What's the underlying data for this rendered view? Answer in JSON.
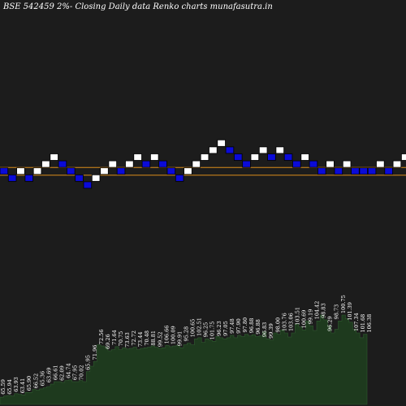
{
  "chart_data": {
    "type": "renko",
    "title": "BSE 542459 2%-  Closing Daily data  Renko  charts munafasutra.in",
    "colors": {
      "background": "#1c1c1c",
      "up_brick": "#ffffff",
      "down_brick": "#0b0bd8",
      "brick_border": "#000000",
      "price_lines": "#d98c1a",
      "volume_fill": "#1e3a1e",
      "volume_line": "#2f5a2f"
    },
    "bricks": [
      {
        "level": 0,
        "dir": "down"
      },
      {
        "level": -1,
        "dir": "down"
      },
      {
        "level": 0,
        "dir": "up"
      },
      {
        "level": -1,
        "dir": "down"
      },
      {
        "level": 0,
        "dir": "up"
      },
      {
        "level": 1,
        "dir": "up"
      },
      {
        "level": 2,
        "dir": "up"
      },
      {
        "level": 1,
        "dir": "down"
      },
      {
        "level": 0,
        "dir": "down"
      },
      {
        "level": -1,
        "dir": "down"
      },
      {
        "level": -2,
        "dir": "down"
      },
      {
        "level": -1,
        "dir": "up"
      },
      {
        "level": 0,
        "dir": "up"
      },
      {
        "level": 1,
        "dir": "up"
      },
      {
        "level": 0,
        "dir": "down"
      },
      {
        "level": 1,
        "dir": "up"
      },
      {
        "level": 2,
        "dir": "up"
      },
      {
        "level": 1,
        "dir": "down"
      },
      {
        "level": 2,
        "dir": "up"
      },
      {
        "level": 1,
        "dir": "down"
      },
      {
        "level": 0,
        "dir": "down"
      },
      {
        "level": -1,
        "dir": "down"
      },
      {
        "level": 0,
        "dir": "up"
      },
      {
        "level": 1,
        "dir": "up"
      },
      {
        "level": 2,
        "dir": "up"
      },
      {
        "level": 3,
        "dir": "up"
      },
      {
        "level": 4,
        "dir": "up"
      },
      {
        "level": 3,
        "dir": "down"
      },
      {
        "level": 2,
        "dir": "down"
      },
      {
        "level": 1,
        "dir": "down"
      },
      {
        "level": 2,
        "dir": "up"
      },
      {
        "level": 3,
        "dir": "up"
      },
      {
        "level": 2,
        "dir": "down"
      },
      {
        "level": 3,
        "dir": "up"
      },
      {
        "level": 2,
        "dir": "down"
      },
      {
        "level": 1,
        "dir": "down"
      },
      {
        "level": 2,
        "dir": "up"
      },
      {
        "level": 1,
        "dir": "down"
      },
      {
        "level": 0,
        "dir": "down"
      },
      {
        "level": 1,
        "dir": "up"
      },
      {
        "level": 0,
        "dir": "down"
      },
      {
        "level": 1,
        "dir": "up"
      },
      {
        "level": 0,
        "dir": "down"
      },
      {
        "level": 0,
        "dir": "down"
      },
      {
        "level": 0,
        "dir": "down"
      },
      {
        "level": 1,
        "dir": "up"
      },
      {
        "level": 0,
        "dir": "down"
      },
      {
        "level": 1,
        "dir": "up"
      },
      {
        "level": 2,
        "dir": "up"
      },
      {
        "level": 1,
        "dir": "down"
      },
      {
        "level": 2,
        "dir": "up"
      },
      {
        "level": 1,
        "dir": "down"
      },
      {
        "level": 0,
        "dir": "down"
      },
      {
        "level": -1,
        "dir": "down"
      },
      {
        "level": 0,
        "dir": "up"
      },
      {
        "level": 1,
        "dir": "up"
      },
      {
        "level": 0,
        "dir": "down"
      },
      {
        "level": 1,
        "dir": "up"
      },
      {
        "level": 0,
        "dir": "down"
      }
    ],
    "price_lines": [
      "upper",
      "lower"
    ],
    "volume_labels": [
      "65.59",
      "65.94",
      "63.93",
      "63.41",
      "65.90",
      "66.52",
      "65.36",
      "63.69",
      "66.61",
      "62.09",
      "64.74",
      "67.95",
      "70.02",
      "65.95",
      "71.96",
      "72.56",
      "69.26",
      "71.64",
      "70.75",
      "73.63",
      "72.72",
      "73.44",
      "70.48",
      "88.81",
      "99.52",
      "106.66",
      "100.09",
      "99.91",
      "95.28",
      "100.65",
      "102.51",
      "96.25",
      "101.75",
      "96.23",
      "97.05",
      "97.48",
      "97.90",
      "97.80",
      "96.88",
      "96.88",
      "96.83",
      "99.39",
      "98.00",
      "103.76",
      "103.06",
      "103.51",
      "100.69",
      "99.19",
      "104.42",
      "98.83",
      "96.29",
      "98.73",
      "100.75",
      "101.39",
      "107.34",
      "101.68",
      "106.38"
    ],
    "volume": [
      12,
      14,
      15,
      14,
      18,
      17,
      16,
      20,
      20,
      25,
      24,
      26,
      28,
      30,
      34,
      38,
      38,
      37,
      40,
      41,
      38,
      38,
      40,
      38,
      55,
      64,
      72,
      100,
      98,
      96,
      90,
      92,
      97,
      92,
      95,
      93,
      94,
      96,
      92,
      94,
      95,
      96,
      98,
      96,
      94,
      95,
      99,
      97,
      98,
      99,
      95,
      100,
      103,
      100,
      110,
      112,
      104,
      110,
      108,
      106,
      114,
      112,
      110,
      112,
      116,
      112,
      116,
      114,
      118,
      115,
      117,
      114,
      115,
      122,
      110,
      108,
      120,
      118,
      125,
      120,
      113,
      120,
      135,
      130,
      125,
      140,
      132,
      124,
      140,
      150,
      142,
      132,
      120,
      126,
      140,
      150,
      144,
      138,
      126,
      120,
      112,
      118
    ]
  }
}
